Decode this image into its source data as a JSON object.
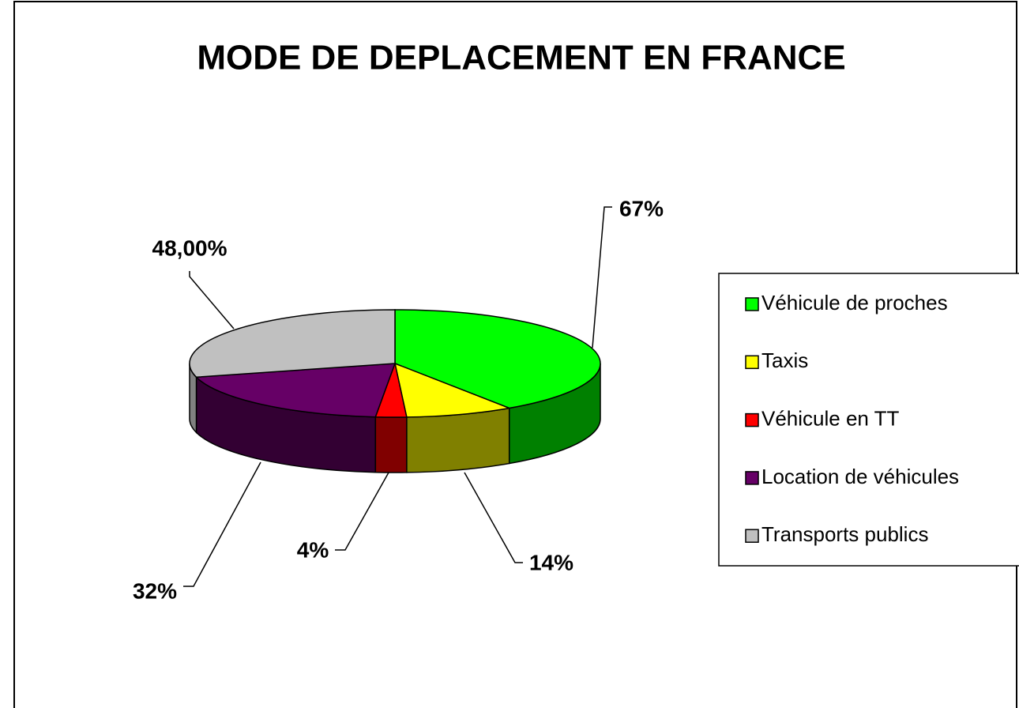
{
  "chart_data": {
    "type": "pie",
    "title": "MODE DE DEPLACEMENT EN FRANCE",
    "categories": [
      "Véhicule de proches",
      "Taxis",
      "Véhicule en TT",
      "Location de véhicules",
      "Transports publics"
    ],
    "values": [
      67,
      14,
      4,
      32,
      48
    ],
    "value_labels": [
      "67%",
      "14%",
      "4%",
      "32%",
      "48,00%"
    ],
    "colors": [
      "#00ff00",
      "#ffff00",
      "#ff0000",
      "#660066",
      "#c0c0c0"
    ],
    "side_colors": [
      "#008000",
      "#808000",
      "#800000",
      "#330033",
      "#808080"
    ],
    "legend": "right"
  }
}
